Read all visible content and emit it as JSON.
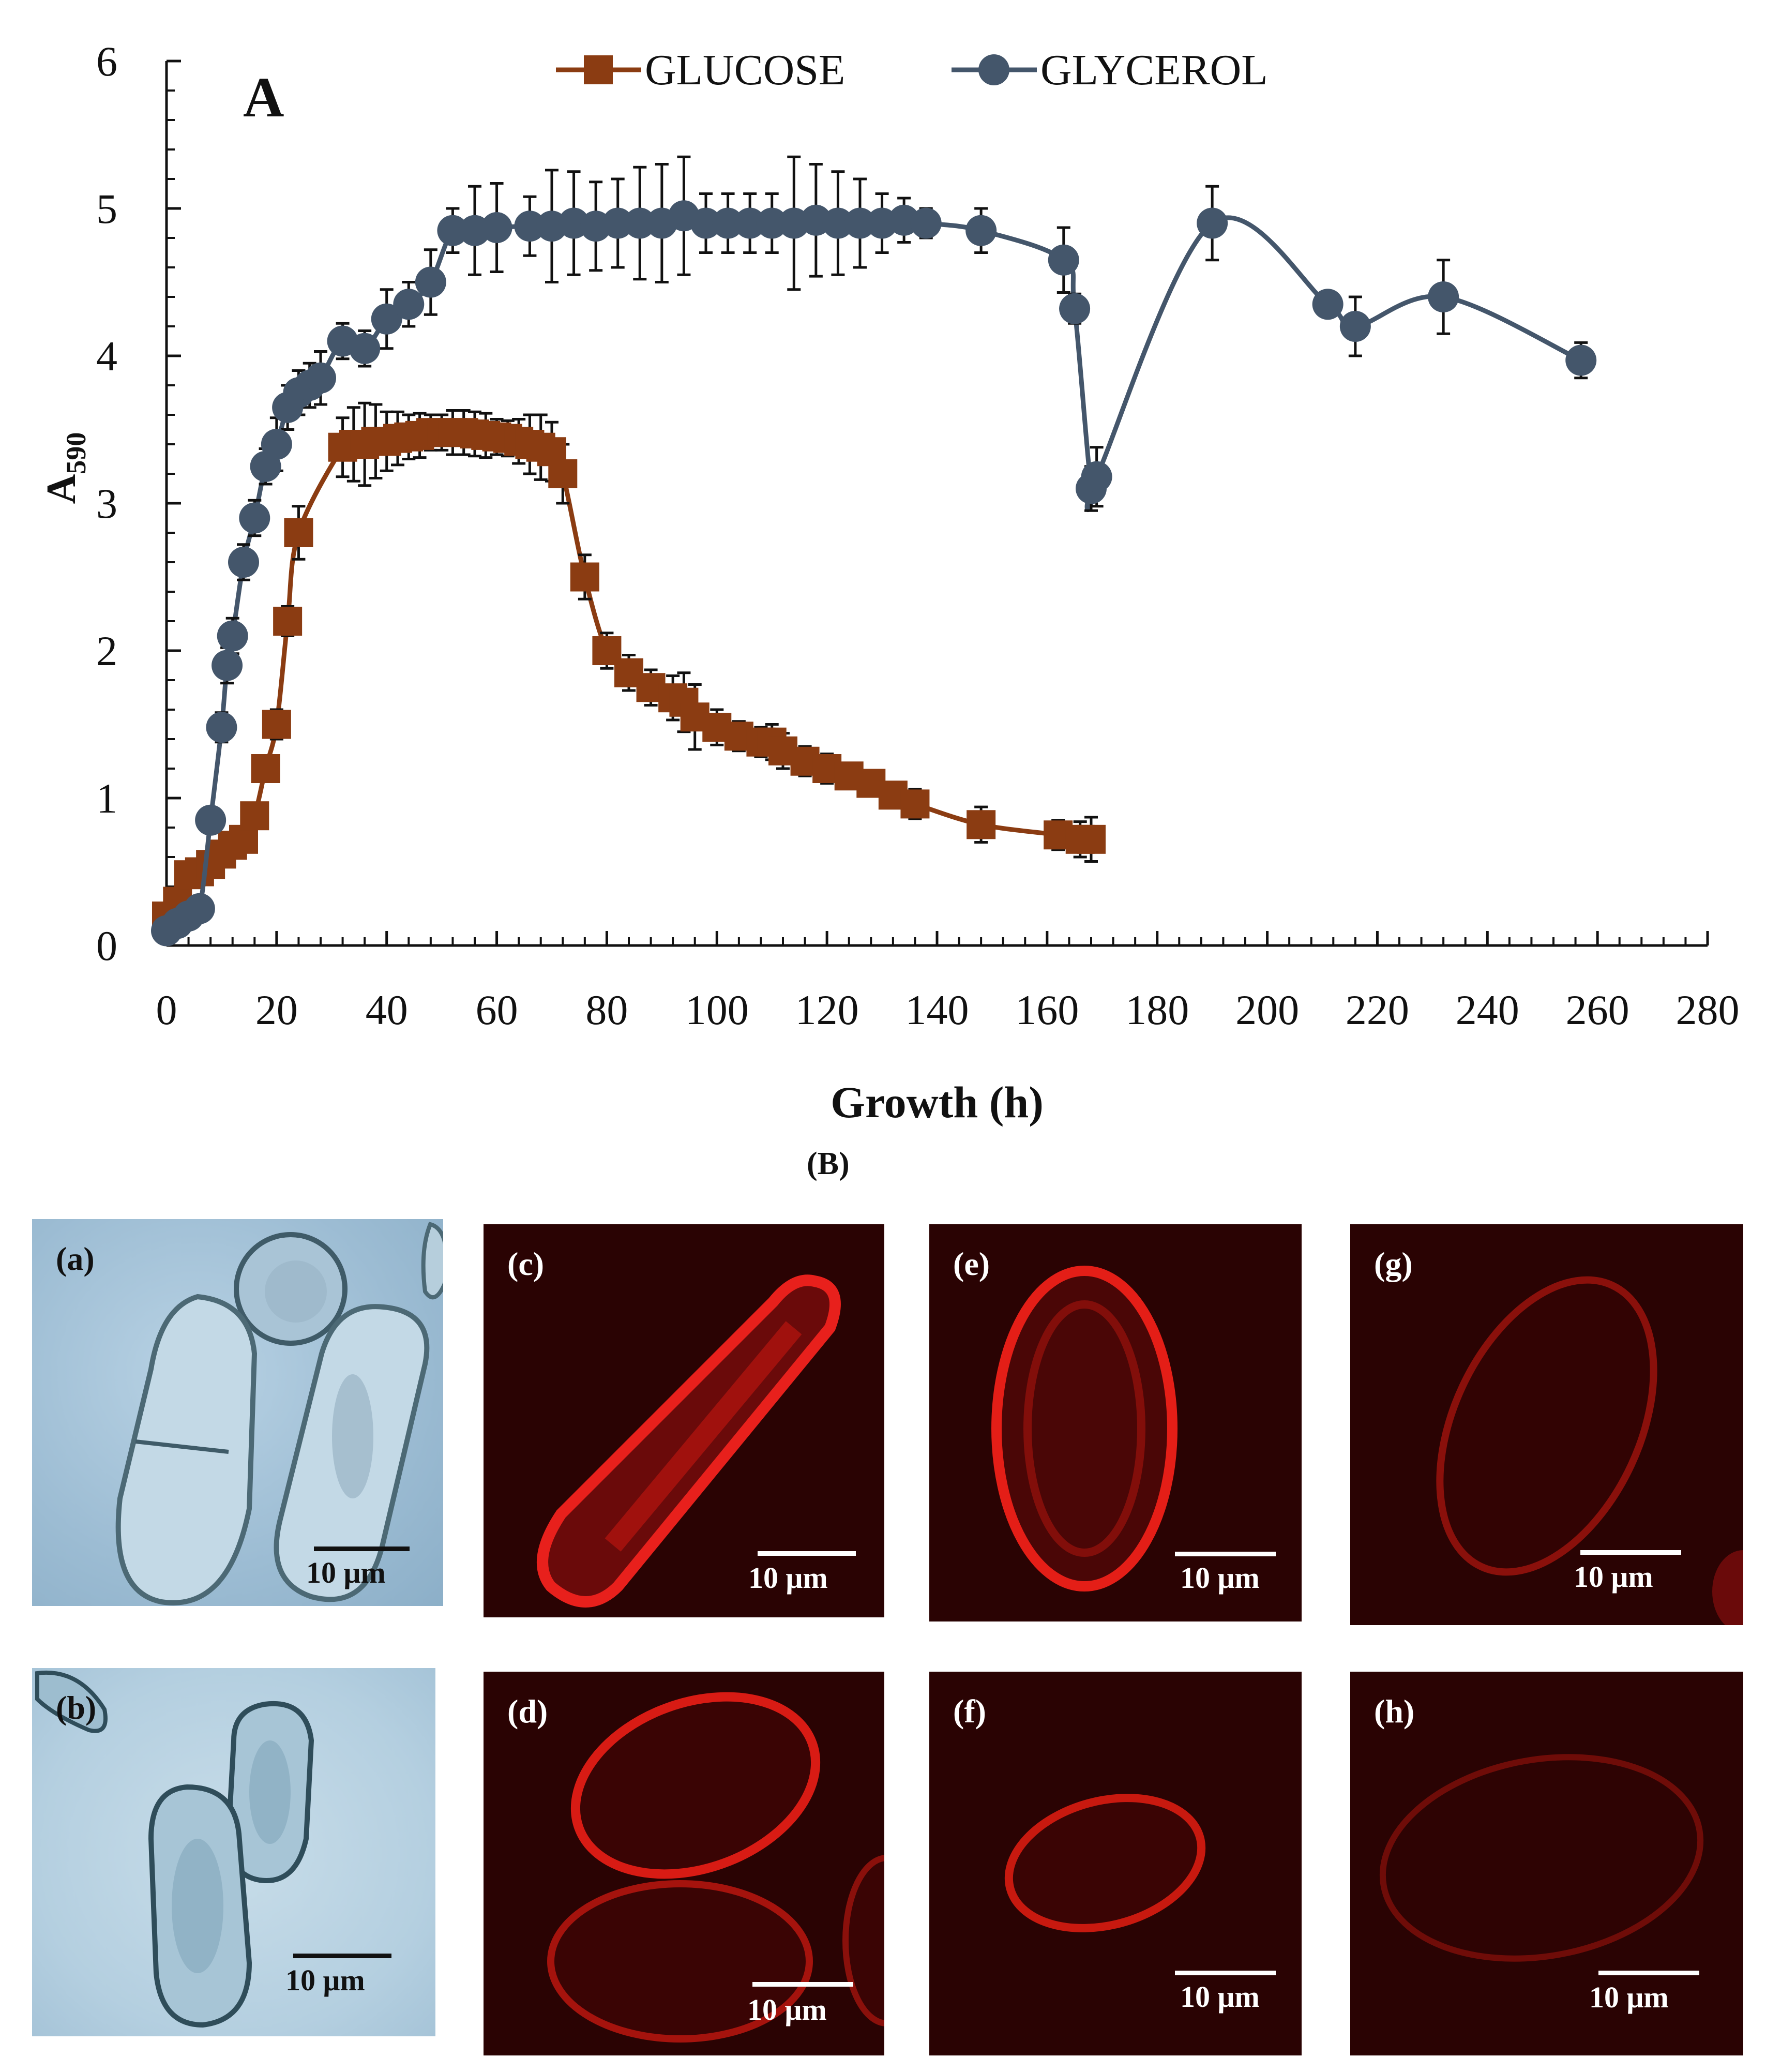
{
  "chart_data": {
    "type": "line",
    "panel_label": "A",
    "title": "",
    "xlabel": "Growth (h)",
    "ylabel_main": "A",
    "ylabel_sub": "590",
    "xlim": [
      0,
      280
    ],
    "ylim": [
      0,
      6
    ],
    "x_ticks": [
      "0",
      "20",
      "40",
      "60",
      "80",
      "100",
      "120",
      "140",
      "160",
      "180",
      "200",
      "220",
      "240",
      "260",
      "280"
    ],
    "y_ticks": [
      "0",
      "1",
      "2",
      "3",
      "4",
      "5",
      "6"
    ],
    "legend_position": "top",
    "series": [
      {
        "name": "GLUCOSE",
        "color": "#8b3c12",
        "marker": "square",
        "x": [
          0,
          2,
          4,
          6,
          8,
          10,
          12,
          14,
          16,
          18,
          20,
          22,
          24,
          32,
          34,
          36,
          38,
          40,
          42,
          44,
          46,
          48,
          50,
          52,
          54,
          56,
          58,
          60,
          62,
          64,
          66,
          68,
          70,
          72,
          76,
          80,
          84,
          88,
          92,
          94,
          96,
          100,
          104,
          108,
          110,
          112,
          116,
          120,
          124,
          128,
          132,
          136,
          148,
          162,
          166,
          168
        ],
        "y": [
          0.2,
          0.3,
          0.48,
          0.5,
          0.55,
          0.62,
          0.68,
          0.72,
          0.88,
          1.2,
          1.5,
          2.2,
          2.8,
          3.38,
          3.4,
          3.4,
          3.42,
          3.42,
          3.44,
          3.45,
          3.46,
          3.48,
          3.48,
          3.48,
          3.48,
          3.47,
          3.46,
          3.45,
          3.44,
          3.42,
          3.4,
          3.38,
          3.35,
          3.2,
          2.5,
          2.0,
          1.85,
          1.75,
          1.68,
          1.65,
          1.55,
          1.48,
          1.42,
          1.38,
          1.38,
          1.32,
          1.25,
          1.2,
          1.15,
          1.1,
          1.02,
          0.96,
          0.82,
          0.75,
          0.72,
          0.72
        ],
        "err": [
          0.05,
          0.05,
          0.05,
          0.05,
          0.05,
          0.05,
          0.05,
          0.06,
          0.06,
          0.08,
          0.1,
          0.1,
          0.18,
          0.2,
          0.25,
          0.28,
          0.25,
          0.2,
          0.18,
          0.15,
          0.15,
          0.12,
          0.12,
          0.15,
          0.15,
          0.15,
          0.15,
          0.12,
          0.12,
          0.15,
          0.2,
          0.22,
          0.2,
          0.2,
          0.15,
          0.12,
          0.12,
          0.12,
          0.15,
          0.2,
          0.22,
          0.12,
          0.1,
          0.1,
          0.12,
          0.12,
          0.1,
          0.1,
          0.08,
          0.08,
          0.08,
          0.1,
          0.12,
          0.1,
          0.12,
          0.15
        ]
      },
      {
        "name": "GLYCEROL",
        "color": "#44566b",
        "marker": "circle",
        "x": [
          0,
          2,
          4,
          6,
          8,
          10,
          11,
          12,
          14,
          16,
          18,
          20,
          22,
          24,
          26,
          28,
          32,
          36,
          40,
          44,
          48,
          52,
          56,
          60,
          66,
          70,
          74,
          78,
          82,
          86,
          90,
          94,
          98,
          102,
          106,
          110,
          114,
          118,
          122,
          126,
          130,
          134,
          138,
          148,
          163,
          165,
          168,
          169,
          190,
          211,
          216,
          232,
          257
        ],
        "y": [
          0.1,
          0.15,
          0.2,
          0.25,
          0.85,
          1.48,
          1.9,
          2.1,
          2.6,
          2.9,
          3.25,
          3.4,
          3.65,
          3.75,
          3.8,
          3.85,
          4.1,
          4.05,
          4.25,
          4.35,
          4.5,
          4.85,
          4.85,
          4.87,
          4.88,
          4.88,
          4.9,
          4.88,
          4.9,
          4.9,
          4.9,
          4.95,
          4.9,
          4.9,
          4.9,
          4.9,
          4.9,
          4.92,
          4.9,
          4.9,
          4.9,
          4.92,
          4.9,
          4.85,
          4.65,
          4.32,
          3.1,
          3.18,
          4.9,
          4.35,
          4.2,
          4.4,
          3.97
        ],
        "err": [
          0.05,
          0.05,
          0.05,
          0.06,
          0.08,
          0.1,
          0.12,
          0.12,
          0.12,
          0.12,
          0.12,
          0.18,
          0.15,
          0.15,
          0.15,
          0.18,
          0.12,
          0.12,
          0.2,
          0.15,
          0.22,
          0.15,
          0.3,
          0.3,
          0.2,
          0.38,
          0.35,
          0.3,
          0.3,
          0.38,
          0.4,
          0.4,
          0.2,
          0.2,
          0.2,
          0.2,
          0.45,
          0.38,
          0.35,
          0.3,
          0.2,
          0.15,
          0.1,
          0.15,
          0.22,
          0.1,
          0.15,
          0.2,
          0.25,
          0.08,
          0.2,
          0.25,
          0.12
        ]
      }
    ]
  },
  "panel_b": {
    "label": "(B)",
    "scale_text": "10 μm",
    "images": [
      {
        "letter": "(a)",
        "kind": "bright-field"
      },
      {
        "letter": "(b)",
        "kind": "bright-field"
      },
      {
        "letter": "(c)",
        "kind": "fluorescence"
      },
      {
        "letter": "(d)",
        "kind": "fluorescence"
      },
      {
        "letter": "(e)",
        "kind": "fluorescence"
      },
      {
        "letter": "(f)",
        "kind": "fluorescence"
      },
      {
        "letter": "(g)",
        "kind": "fluorescence"
      },
      {
        "letter": "(h)",
        "kind": "fluorescence"
      }
    ]
  }
}
